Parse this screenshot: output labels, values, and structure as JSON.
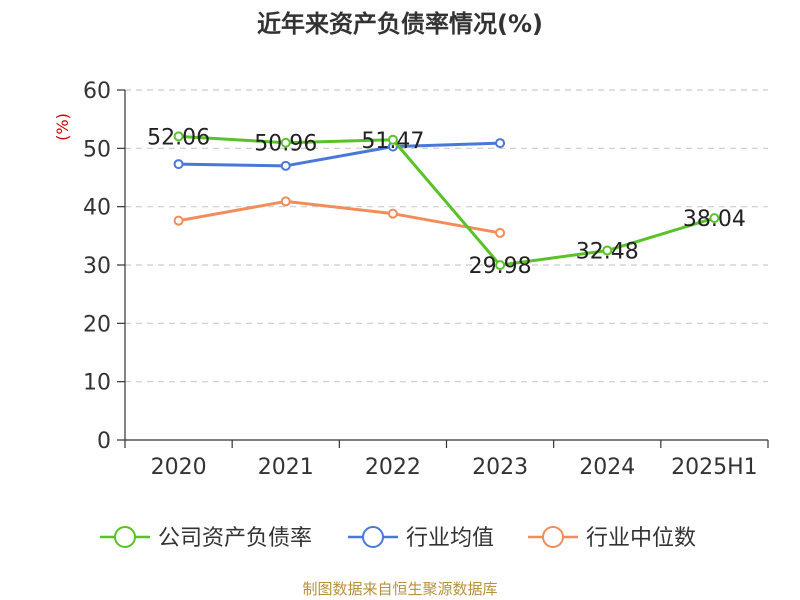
{
  "chart_data": {
    "type": "line",
    "title": "近年来资产负债率情况(%)",
    "ylabel": "(%)",
    "xlabel": "",
    "categories": [
      "2020",
      "2021",
      "2022",
      "2023",
      "2024",
      "2025H1"
    ],
    "ylim": [
      0,
      60
    ],
    "yticks": [
      0,
      10,
      20,
      30,
      40,
      50,
      60
    ],
    "grid": true,
    "legend_position": "bottom",
    "series": [
      {
        "name": "公司资产负债率",
        "color": "#5ac229",
        "values": [
          52.06,
          50.96,
          51.47,
          29.98,
          32.48,
          38.04
        ],
        "labels": [
          "52.06",
          "50.96",
          "51.47",
          "29.98",
          "32.48",
          "38.04"
        ],
        "show_labels": true
      },
      {
        "name": "行业均值",
        "color": "#4a78d6",
        "values": [
          47.3,
          47.0,
          50.3,
          50.9,
          null,
          null
        ],
        "show_labels": false
      },
      {
        "name": "行业中位数",
        "color": "#f28c5a",
        "values": [
          37.6,
          40.9,
          38.8,
          35.5,
          null,
          null
        ],
        "show_labels": false
      }
    ],
    "source": "制图数据来自恒生聚源数据库"
  }
}
